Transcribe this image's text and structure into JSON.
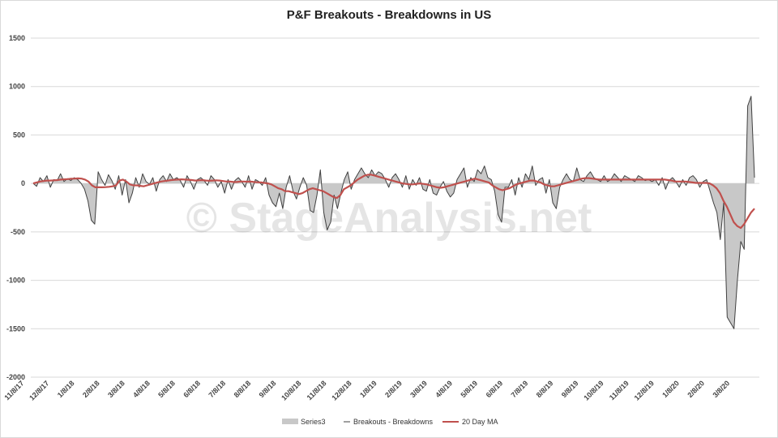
{
  "chart_data": {
    "type": "area",
    "title": "P&F Breakouts - Breakdowns in US",
    "watermark": "© StageAnalysis.net",
    "xlabel": "",
    "ylabel": "",
    "ylim": [
      -2000,
      1500
    ],
    "yticks": [
      1500,
      1000,
      500,
      0,
      -500,
      -1000,
      -1500,
      -2000
    ],
    "grid": true,
    "legend_position": "bottom",
    "x_tick_labels": [
      "11/8/17",
      "12/8/17",
      "1/8/18",
      "2/8/18",
      "3/8/18",
      "4/8/18",
      "5/8/18",
      "6/8/18",
      "7/8/18",
      "8/8/18",
      "9/8/18",
      "10/8/18",
      "11/8/18",
      "12/8/18",
      "1/8/19",
      "2/8/19",
      "3/8/19",
      "4/8/19",
      "5/8/19",
      "6/8/19",
      "7/8/19",
      "8/8/19",
      "9/8/19",
      "10/8/19",
      "11/8/19",
      "12/8/19",
      "1/8/20",
      "2/8/20",
      "3/8/20"
    ],
    "series": [
      {
        "name": "Series3",
        "kind": "area",
        "color": "#c8c8c8",
        "values": [
          0,
          -30,
          60,
          20,
          80,
          -40,
          40,
          30,
          100,
          20,
          50,
          30,
          60,
          40,
          0,
          -60,
          -180,
          -380,
          -420,
          120,
          40,
          -20,
          90,
          30,
          -60,
          80,
          -120,
          40,
          -200,
          -100,
          60,
          -40,
          100,
          20,
          -10,
          60,
          -80,
          40,
          80,
          20,
          100,
          40,
          60,
          30,
          -40,
          80,
          20,
          -60,
          40,
          60,
          30,
          -20,
          80,
          40,
          -40,
          20,
          -100,
          40,
          -60,
          30,
          60,
          20,
          -40,
          80,
          -60,
          40,
          20,
          -20,
          60,
          -120,
          -200,
          -240,
          -100,
          -260,
          -40,
          80,
          -80,
          -160,
          -40,
          60,
          -20,
          -280,
          -300,
          -120,
          140,
          -300,
          -480,
          -400,
          -120,
          -260,
          -100,
          40,
          120,
          -60,
          40,
          100,
          160,
          100,
          60,
          140,
          80,
          120,
          100,
          40,
          -40,
          60,
          100,
          40,
          -40,
          80,
          -60,
          40,
          -20,
          60,
          -60,
          -80,
          40,
          -100,
          -120,
          -40,
          20,
          -80,
          -140,
          -100,
          40,
          100,
          160,
          -40,
          60,
          20,
          140,
          100,
          180,
          60,
          40,
          -80,
          -320,
          -400,
          -40,
          -40,
          40,
          -120,
          60,
          -40,
          100,
          40,
          180,
          -20,
          40,
          60,
          -100,
          40,
          -200,
          -260,
          -40,
          40,
          100,
          40,
          20,
          160,
          40,
          20,
          80,
          120,
          60,
          40,
          20,
          80,
          20,
          40,
          100,
          60,
          20,
          80,
          60,
          40,
          20,
          80,
          60,
          30,
          40,
          20,
          40,
          -20,
          60,
          -60,
          30,
          60,
          20,
          -40,
          40,
          -20,
          60,
          80,
          40,
          -40,
          20,
          40,
          -80,
          -200,
          -300,
          -580,
          -200,
          -1380,
          -1440,
          -1500,
          -1000,
          -600,
          -680,
          800,
          900,
          60
        ]
      },
      {
        "name": "Breakouts - Breakdowns",
        "kind": "line",
        "color": "#404040",
        "values": [
          0,
          -30,
          60,
          20,
          80,
          -40,
          40,
          30,
          100,
          20,
          50,
          30,
          60,
          40,
          0,
          -60,
          -180,
          -380,
          -420,
          120,
          40,
          -20,
          90,
          30,
          -60,
          80,
          -120,
          40,
          -200,
          -100,
          60,
          -40,
          100,
          20,
          -10,
          60,
          -80,
          40,
          80,
          20,
          100,
          40,
          60,
          30,
          -40,
          80,
          20,
          -60,
          40,
          60,
          30,
          -20,
          80,
          40,
          -40,
          20,
          -100,
          40,
          -60,
          30,
          60,
          20,
          -40,
          80,
          -60,
          40,
          20,
          -20,
          60,
          -120,
          -200,
          -240,
          -100,
          -260,
          -40,
          80,
          -80,
          -160,
          -40,
          60,
          -20,
          -280,
          -300,
          -120,
          140,
          -300,
          -480,
          -400,
          -120,
          -260,
          -100,
          40,
          120,
          -60,
          40,
          100,
          160,
          100,
          60,
          140,
          80,
          120,
          100,
          40,
          -40,
          60,
          100,
          40,
          -40,
          80,
          -60,
          40,
          -20,
          60,
          -60,
          -80,
          40,
          -100,
          -120,
          -40,
          20,
          -80,
          -140,
          -100,
          40,
          100,
          160,
          -40,
          60,
          20,
          140,
          100,
          180,
          60,
          40,
          -80,
          -320,
          -400,
          -40,
          -40,
          40,
          -120,
          60,
          -40,
          100,
          40,
          180,
          -20,
          40,
          60,
          -100,
          40,
          -200,
          -260,
          -40,
          40,
          100,
          40,
          20,
          160,
          40,
          20,
          80,
          120,
          60,
          40,
          20,
          80,
          20,
          40,
          100,
          60,
          20,
          80,
          60,
          40,
          20,
          80,
          60,
          30,
          40,
          20,
          40,
          -20,
          60,
          -60,
          30,
          60,
          20,
          -40,
          40,
          -20,
          60,
          80,
          40,
          -40,
          20,
          40,
          -80,
          -200,
          -300,
          -580,
          -200,
          -1380,
          -1440,
          -1500,
          -1000,
          -600,
          -680,
          800,
          900,
          60
        ]
      },
      {
        "name": "20 Day MA",
        "kind": "line",
        "color": "#c0504d",
        "values": [
          0,
          10,
          20,
          25,
          30,
          30,
          32,
          35,
          40,
          42,
          45,
          48,
          50,
          52,
          50,
          40,
          20,
          -20,
          -40,
          -40,
          -40,
          -38,
          -35,
          -30,
          -20,
          30,
          40,
          20,
          -10,
          -20,
          -20,
          -25,
          -30,
          -20,
          -10,
          0,
          10,
          20,
          25,
          30,
          35,
          38,
          40,
          42,
          40,
          38,
          35,
          30,
          32,
          35,
          30,
          28,
          30,
          32,
          30,
          25,
          20,
          20,
          15,
          15,
          20,
          20,
          18,
          20,
          15,
          12,
          10,
          5,
          0,
          -10,
          -30,
          -50,
          -60,
          -80,
          -80,
          -90,
          -100,
          -110,
          -100,
          -80,
          -60,
          -50,
          -60,
          -70,
          -80,
          -100,
          -120,
          -140,
          -150,
          -120,
          -60,
          -40,
          -20,
          10,
          40,
          60,
          80,
          90,
          90,
          80,
          70,
          60,
          50,
          40,
          30,
          20,
          10,
          0,
          -5,
          -10,
          -10,
          -5,
          0,
          -5,
          -10,
          -20,
          -30,
          -40,
          -45,
          -40,
          -30,
          -20,
          -10,
          0,
          10,
          20,
          30,
          40,
          50,
          40,
          30,
          20,
          10,
          -20,
          -40,
          -60,
          -70,
          -60,
          -50,
          -30,
          -10,
          0,
          10,
          20,
          30,
          30,
          20,
          10,
          -10,
          -20,
          -30,
          -30,
          -20,
          -10,
          0,
          10,
          20,
          30,
          40,
          50,
          55,
          55,
          50,
          45,
          40,
          40,
          40,
          40,
          40,
          40,
          40,
          40,
          40,
          40,
          40,
          40,
          40,
          40,
          40,
          40,
          40,
          40,
          40,
          40,
          35,
          30,
          20,
          20,
          20,
          20,
          15,
          10,
          5,
          5,
          5,
          5,
          0,
          -20,
          -50,
          -100,
          -180,
          -240,
          -320,
          -400,
          -440,
          -460,
          -420,
          -360,
          -300,
          -260
        ]
      }
    ]
  }
}
